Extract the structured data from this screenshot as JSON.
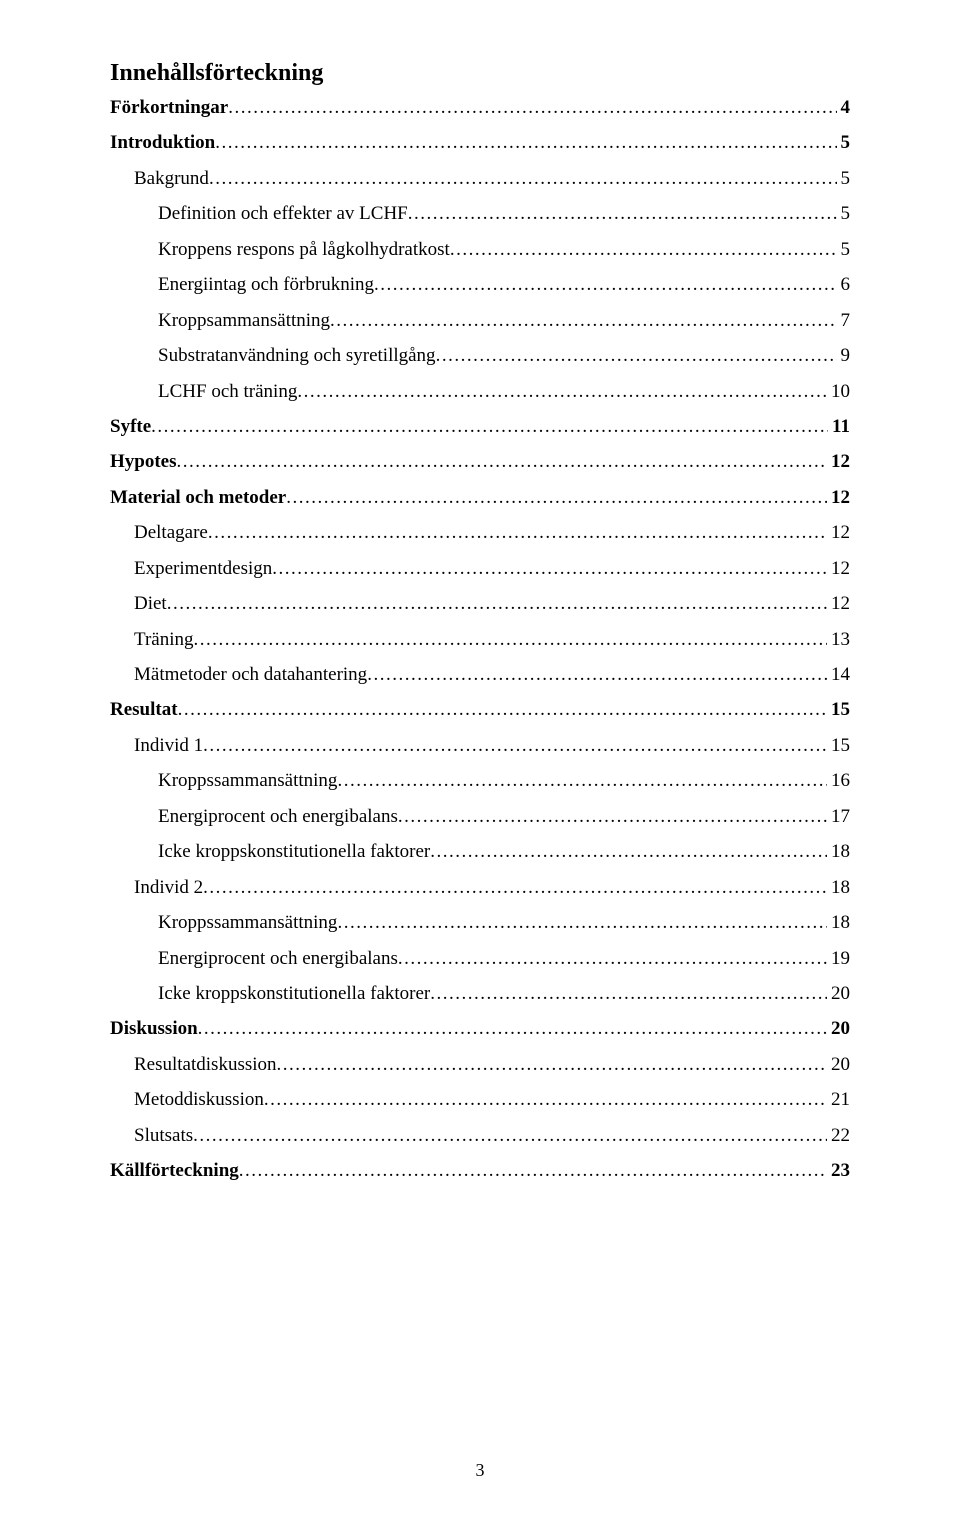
{
  "title": "Innehållsförteckning",
  "page_number": "3",
  "entries": [
    {
      "label": "Förkortningar",
      "page": "4",
      "indent": 0,
      "bold": true
    },
    {
      "label": "Introduktion",
      "page": "5",
      "indent": 0,
      "bold": true
    },
    {
      "label": "Bakgrund",
      "page": "5",
      "indent": 1,
      "bold": false
    },
    {
      "label": "Definition och effekter av LCHF",
      "page": "5",
      "indent": 2,
      "bold": false
    },
    {
      "label": "Kroppens respons på lågkolhydratkost",
      "page": "5",
      "indent": 2,
      "bold": false
    },
    {
      "label": "Energiintag och förbrukning",
      "page": "6",
      "indent": 2,
      "bold": false
    },
    {
      "label": "Kroppsammansättning",
      "page": "7",
      "indent": 2,
      "bold": false
    },
    {
      "label": "Substratanvändning och syretillgång",
      "page": "9",
      "indent": 2,
      "bold": false
    },
    {
      "label": "LCHF och träning",
      "page": "10",
      "indent": 2,
      "bold": false
    },
    {
      "label": "Syfte",
      "page": "11",
      "indent": 0,
      "bold": true
    },
    {
      "label": "Hypotes",
      "page": "12",
      "indent": 0,
      "bold": true
    },
    {
      "label": "Material och metoder",
      "page": "12",
      "indent": 0,
      "bold": true
    },
    {
      "label": "Deltagare",
      "page": "12",
      "indent": 1,
      "bold": false
    },
    {
      "label": "Experimentdesign",
      "page": "12",
      "indent": 1,
      "bold": false
    },
    {
      "label": "Diet",
      "page": "12",
      "indent": 1,
      "bold": false
    },
    {
      "label": "Träning",
      "page": "13",
      "indent": 1,
      "bold": false
    },
    {
      "label": "Mätmetoder och datahantering",
      "page": "14",
      "indent": 1,
      "bold": false
    },
    {
      "label": "Resultat",
      "page": "15",
      "indent": 0,
      "bold": true
    },
    {
      "label": "Individ 1",
      "page": "15",
      "indent": 1,
      "bold": false
    },
    {
      "label": "Kroppssammansättning",
      "page": "16",
      "indent": 2,
      "bold": false
    },
    {
      "label": "Energiprocent och energibalans",
      "page": "17",
      "indent": 2,
      "bold": false
    },
    {
      "label": "Icke kroppskonstitutionella faktorer",
      "page": "18",
      "indent": 2,
      "bold": false
    },
    {
      "label": "Individ 2",
      "page": "18",
      "indent": 1,
      "bold": false
    },
    {
      "label": "Kroppssammansättning",
      "page": "18",
      "indent": 2,
      "bold": false
    },
    {
      "label": "Energiprocent och energibalans",
      "page": "19",
      "indent": 2,
      "bold": false
    },
    {
      "label": "Icke kroppskonstitutionella faktorer",
      "page": "20",
      "indent": 2,
      "bold": false
    },
    {
      "label": "Diskussion",
      "page": "20",
      "indent": 0,
      "bold": true
    },
    {
      "label": "Resultatdiskussion",
      "page": "20",
      "indent": 1,
      "bold": false
    },
    {
      "label": "Metoddiskussion",
      "page": "21",
      "indent": 1,
      "bold": false
    },
    {
      "label": "Slutsats",
      "page": "22",
      "indent": 1,
      "bold": false
    },
    {
      "label": "Källförteckning",
      "page": "23",
      "indent": 0,
      "bold": true
    }
  ]
}
